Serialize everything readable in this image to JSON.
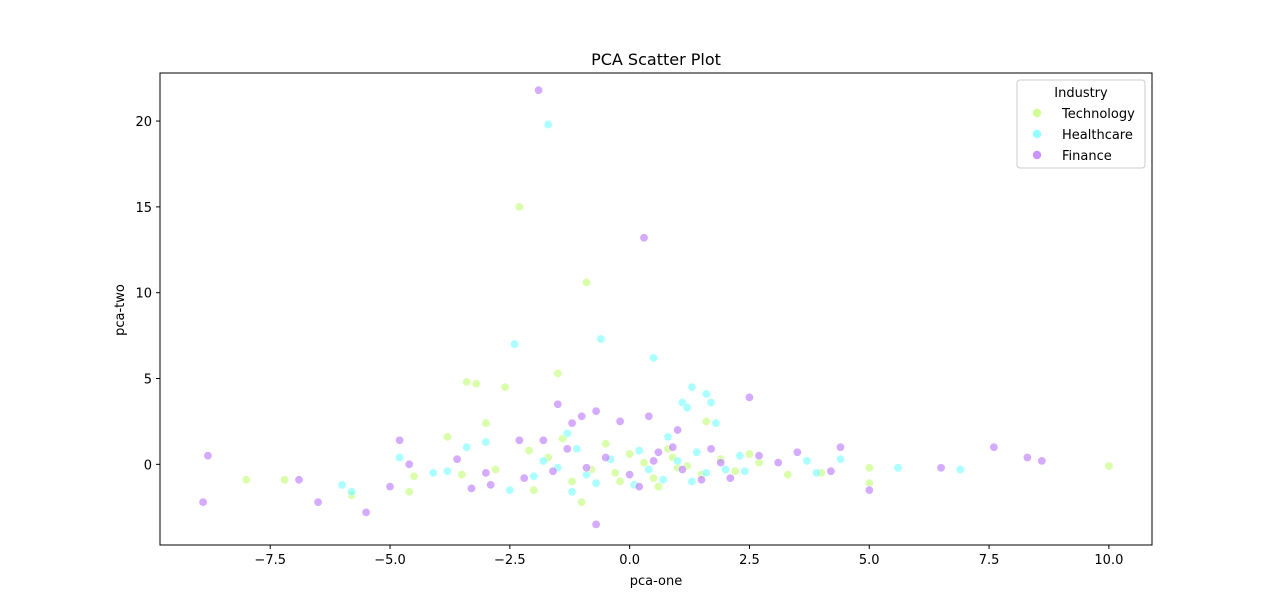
{
  "chart_data": {
    "type": "scatter",
    "title": "PCA Scatter Plot",
    "xlabel": "pca-one",
    "ylabel": "pca-two",
    "xlim": [
      -9.8,
      10.9
    ],
    "ylim": [
      -4.7,
      22.8
    ],
    "xticks": [
      -7.5,
      -5.0,
      -2.5,
      0.0,
      2.5,
      5.0,
      7.5,
      10.0
    ],
    "xtick_labels": [
      "−7.5",
      "−5.0",
      "−2.5",
      "0.0",
      "2.5",
      "5.0",
      "7.5",
      "10.0"
    ],
    "yticks": [
      0,
      5,
      10,
      15,
      20
    ],
    "ytick_labels": [
      "0",
      "5",
      "10",
      "15",
      "20"
    ],
    "grid": false,
    "legend": {
      "title": "Industry",
      "placement": "top-right"
    },
    "series": [
      {
        "name": "Technology",
        "color": "#b9ff66",
        "points": [
          [
            -8.0,
            -0.9
          ],
          [
            -7.2,
            -0.9
          ],
          [
            -5.8,
            -1.8
          ],
          [
            -4.6,
            -1.6
          ],
          [
            -4.5,
            -0.7
          ],
          [
            -3.8,
            1.6
          ],
          [
            -3.4,
            4.8
          ],
          [
            -3.2,
            4.7
          ],
          [
            -3.0,
            2.4
          ],
          [
            -2.6,
            4.5
          ],
          [
            -2.3,
            15.0
          ],
          [
            -2.0,
            -1.5
          ],
          [
            -1.5,
            5.3
          ],
          [
            -0.9,
            10.6
          ],
          [
            -1.2,
            -1.0
          ],
          [
            -0.3,
            -0.5
          ],
          [
            0.5,
            -0.8
          ],
          [
            1.0,
            -0.2
          ],
          [
            1.6,
            2.5
          ],
          [
            2.5,
            0.6
          ],
          [
            3.3,
            -0.6
          ],
          [
            4.0,
            -0.5
          ],
          [
            5.0,
            -0.2
          ],
          [
            5.0,
            -1.1
          ],
          [
            10.0,
            -0.1
          ],
          [
            -2.8,
            -0.3
          ],
          [
            -1.7,
            0.4
          ],
          [
            -0.5,
            1.2
          ],
          [
            0.8,
            0.9
          ],
          [
            1.5,
            -0.6
          ],
          [
            2.2,
            -0.4
          ],
          [
            -3.5,
            -0.6
          ],
          [
            -1.0,
            -2.2
          ],
          [
            0.0,
            0.6
          ],
          [
            0.6,
            -1.3
          ],
          [
            1.9,
            0.3
          ],
          [
            -2.1,
            0.8
          ],
          [
            -0.8,
            -0.3
          ],
          [
            0.3,
            0.1
          ],
          [
            1.2,
            -0.1
          ],
          [
            2.7,
            0.1
          ],
          [
            -1.4,
            1.5
          ],
          [
            0.9,
            0.4
          ],
          [
            -0.2,
            -1.0
          ]
        ]
      },
      {
        "name": "Healthcare",
        "color": "#66ffff",
        "points": [
          [
            -5.8,
            -1.6
          ],
          [
            -6.0,
            -1.2
          ],
          [
            -4.8,
            0.4
          ],
          [
            -4.1,
            -0.5
          ],
          [
            -3.4,
            1.0
          ],
          [
            -3.0,
            1.3
          ],
          [
            -2.4,
            7.0
          ],
          [
            -1.7,
            19.8
          ],
          [
            -1.2,
            -1.6
          ],
          [
            -0.6,
            7.3
          ],
          [
            0.5,
            6.2
          ],
          [
            1.1,
            3.6
          ],
          [
            1.2,
            3.3
          ],
          [
            1.3,
            4.5
          ],
          [
            1.6,
            4.1
          ],
          [
            1.7,
            3.6
          ],
          [
            1.8,
            2.4
          ],
          [
            2.4,
            -0.4
          ],
          [
            3.9,
            -0.5
          ],
          [
            4.4,
            0.3
          ],
          [
            5.6,
            -0.2
          ],
          [
            6.9,
            -0.3
          ],
          [
            -2.5,
            -1.5
          ],
          [
            -1.8,
            0.2
          ],
          [
            -0.9,
            -0.6
          ],
          [
            0.2,
            0.8
          ],
          [
            0.7,
            -0.9
          ],
          [
            1.4,
            0.7
          ],
          [
            2.0,
            -0.3
          ],
          [
            -1.5,
            -0.2
          ],
          [
            -0.4,
            0.3
          ],
          [
            0.4,
            -0.3
          ],
          [
            1.0,
            0.2
          ],
          [
            2.3,
            0.5
          ],
          [
            -2.0,
            -0.7
          ],
          [
            -1.1,
            0.9
          ],
          [
            0.1,
            -1.2
          ],
          [
            1.6,
            -0.5
          ],
          [
            3.7,
            0.2
          ],
          [
            -3.8,
            -0.4
          ],
          [
            -0.7,
            -1.1
          ],
          [
            0.8,
            1.6
          ],
          [
            1.3,
            -1.0
          ],
          [
            -1.3,
            1.8
          ]
        ]
      },
      {
        "name": "Finance",
        "color": "#b366ff",
        "points": [
          [
            -8.9,
            -2.2
          ],
          [
            -8.8,
            0.5
          ],
          [
            -6.9,
            -0.9
          ],
          [
            -6.5,
            -2.2
          ],
          [
            -5.5,
            -2.8
          ],
          [
            -5.0,
            -1.3
          ],
          [
            -4.8,
            1.4
          ],
          [
            -4.6,
            0.0
          ],
          [
            -3.6,
            0.3
          ],
          [
            -3.3,
            -1.4
          ],
          [
            -2.9,
            -1.2
          ],
          [
            -2.3,
            1.4
          ],
          [
            -1.9,
            21.8
          ],
          [
            -1.8,
            1.4
          ],
          [
            -1.5,
            3.5
          ],
          [
            -1.2,
            2.4
          ],
          [
            -1.0,
            2.8
          ],
          [
            -0.7,
            3.1
          ],
          [
            -0.7,
            -3.5
          ],
          [
            -0.2,
            2.5
          ],
          [
            0.3,
            13.2
          ],
          [
            0.4,
            2.8
          ],
          [
            1.0,
            2.0
          ],
          [
            2.5,
            3.9
          ],
          [
            3.5,
            0.7
          ],
          [
            4.2,
            -0.4
          ],
          [
            4.4,
            1.0
          ],
          [
            5.0,
            -1.5
          ],
          [
            6.5,
            -0.2
          ],
          [
            7.6,
            1.0
          ],
          [
            8.3,
            0.4
          ],
          [
            8.6,
            0.2
          ],
          [
            -2.2,
            -0.8
          ],
          [
            -1.6,
            -0.4
          ],
          [
            -0.5,
            0.4
          ],
          [
            0.0,
            -0.6
          ],
          [
            0.6,
            0.7
          ],
          [
            1.1,
            -0.3
          ],
          [
            1.7,
            0.9
          ],
          [
            2.1,
            -0.8
          ],
          [
            2.7,
            0.5
          ],
          [
            -3.0,
            -0.5
          ],
          [
            -1.3,
            0.9
          ],
          [
            0.2,
            -1.3
          ],
          [
            0.9,
            1.0
          ],
          [
            1.5,
            -0.9
          ],
          [
            -0.9,
            -0.2
          ],
          [
            0.5,
            0.2
          ],
          [
            1.9,
            0.1
          ],
          [
            3.1,
            0.1
          ]
        ]
      }
    ]
  }
}
